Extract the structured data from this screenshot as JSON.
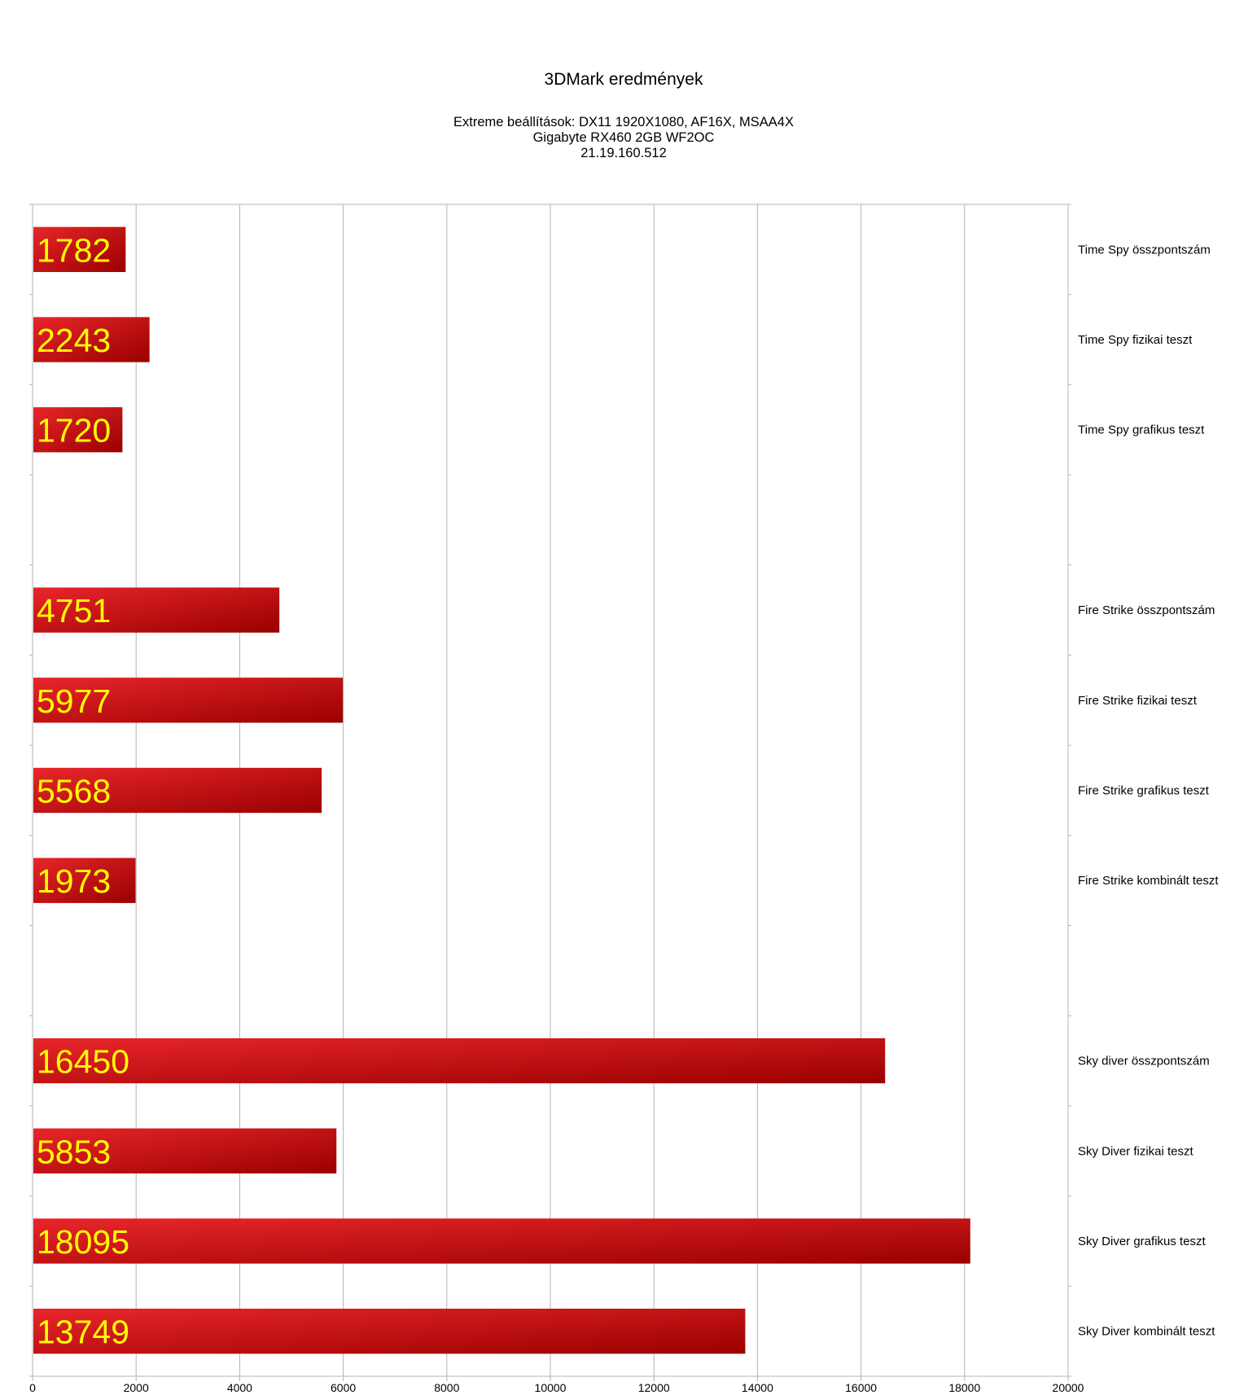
{
  "chart_data": {
    "type": "bar",
    "orientation": "horizontal",
    "title": "3DMark eredmények",
    "subtitle": [
      "Extreme beállítások: DX11 1920X1080, AF16X, MSAA4X",
      "Gigabyte RX460 2GB WF2OC",
      "21.19.160.512"
    ],
    "categories": [
      "Time Spy összpontszám",
      "Time Spy fizikai teszt",
      "Time Spy grafikus teszt",
      "",
      "Fire Strike összpontszám",
      "Fire Strike fizikai teszt",
      "Fire Strike grafikus teszt",
      "Fire Strike kombinált teszt",
      "",
      "Sky diver összpontszám",
      "Sky Diver fizikai teszt",
      "Sky Diver grafikus teszt",
      "Sky Diver kombinált teszt"
    ],
    "values": [
      1782,
      2243,
      1720,
      null,
      4751,
      5977,
      5568,
      1973,
      null,
      16450,
      5853,
      18095,
      13749
    ],
    "data_labels": true,
    "xlim": [
      0,
      20000
    ],
    "xticks": [
      0,
      2000,
      4000,
      6000,
      8000,
      10000,
      12000,
      14000,
      16000,
      18000,
      20000
    ],
    "category_axis_side": "right",
    "grid": true,
    "legend": "none",
    "colors": {
      "bar_light": "#e8262a",
      "bar_dark": "#9a0000",
      "label": "#ffff00",
      "grid": "#b3b3b3"
    }
  }
}
